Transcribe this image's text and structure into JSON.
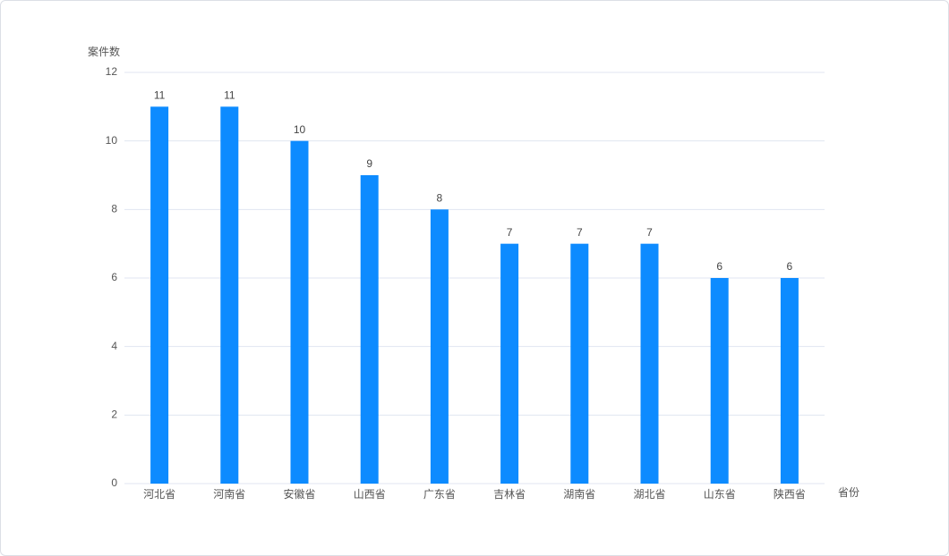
{
  "chart_data": {
    "type": "bar",
    "y_label": "案件数",
    "x_label": "省份",
    "categories": [
      "河北省",
      "河南省",
      "安徽省",
      "山西省",
      "广东省",
      "吉林省",
      "湖南省",
      "湖北省",
      "山东省",
      "陕西省"
    ],
    "values": [
      11,
      11,
      10,
      9,
      8,
      7,
      7,
      7,
      6,
      6
    ],
    "color": "#0d8bff",
    "ylim": [
      0,
      12
    ],
    "yticks": [
      0,
      2,
      4,
      6,
      8,
      10,
      12
    ],
    "grid": true
  }
}
